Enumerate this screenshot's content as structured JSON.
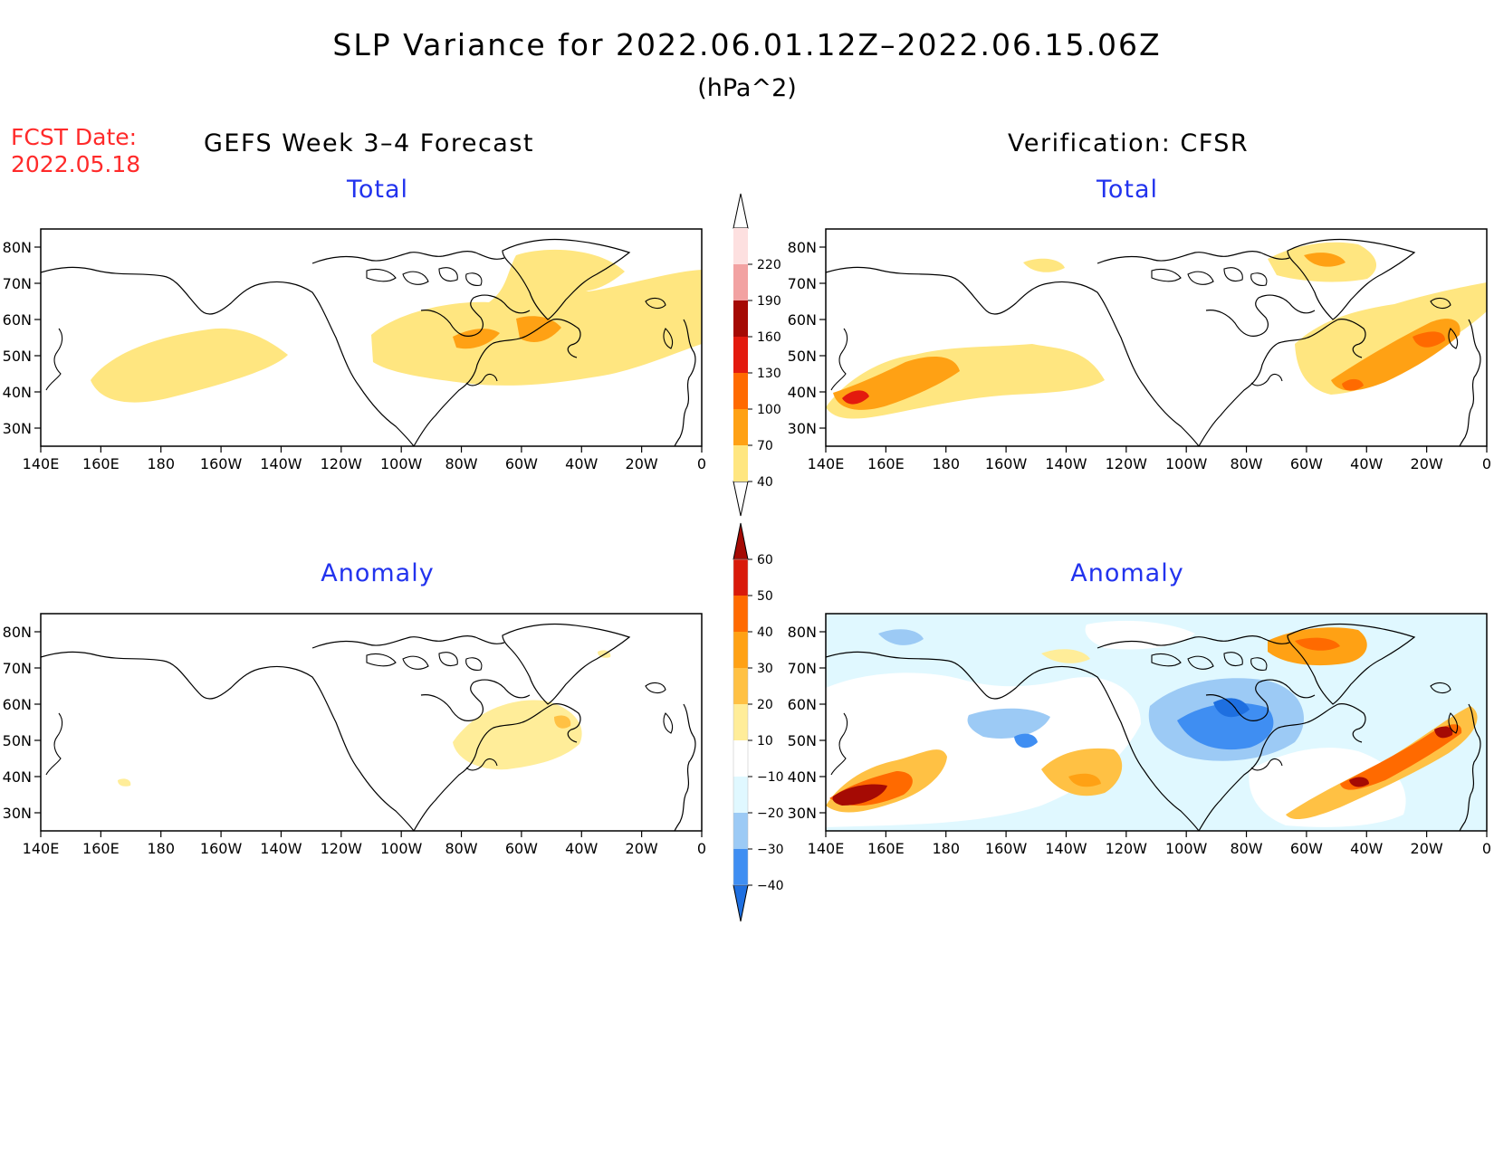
{
  "title": "SLP Variance for 2022.06.01.12Z–2022.06.15.06Z",
  "units": "(hPa^2)",
  "forecast_label": "FCST Date:",
  "forecast_date": "2022.05.18",
  "left_header": "GEFS Week 3–4 Forecast",
  "right_header": "Verification: CFSR",
  "lon_ticks": [
    "140E",
    "160E",
    "180",
    "160W",
    "140W",
    "120W",
    "100W",
    "80W",
    "60W",
    "40W",
    "20W",
    "0"
  ],
  "lat_ticks": [
    "80N",
    "70N",
    "60N",
    "50N",
    "40N",
    "30N"
  ],
  "panels": [
    {
      "id": "gefs-total",
      "title": "Total"
    },
    {
      "id": "cfsr-total",
      "title": "Total"
    },
    {
      "id": "gefs-anomaly",
      "title": "Anomaly"
    },
    {
      "id": "cfsr-anomaly",
      "title": "Anomaly"
    }
  ],
  "colorbar_total": {
    "labels": [
      "40",
      "70",
      "100",
      "130",
      "160",
      "190",
      "220"
    ],
    "colors": [
      "#ffe680",
      "#ffa114",
      "#ff6a00",
      "#e31a0e",
      "#a50a04",
      "#f2a2a2",
      "#fde0e0"
    ]
  },
  "colorbar_anomaly": {
    "labels": [
      "−40",
      "−30",
      "−20",
      "−10",
      "10",
      "20",
      "30",
      "40",
      "50",
      "60"
    ],
    "colors": [
      "#1e6fe0",
      "#3f8ef2",
      "#9ccaf5",
      "#e0f8ff",
      "#ffffff",
      "#ffed99",
      "#ffc144",
      "#ffa114",
      "#ff6a00",
      "#d91a0a",
      "#a50a04"
    ]
  }
}
